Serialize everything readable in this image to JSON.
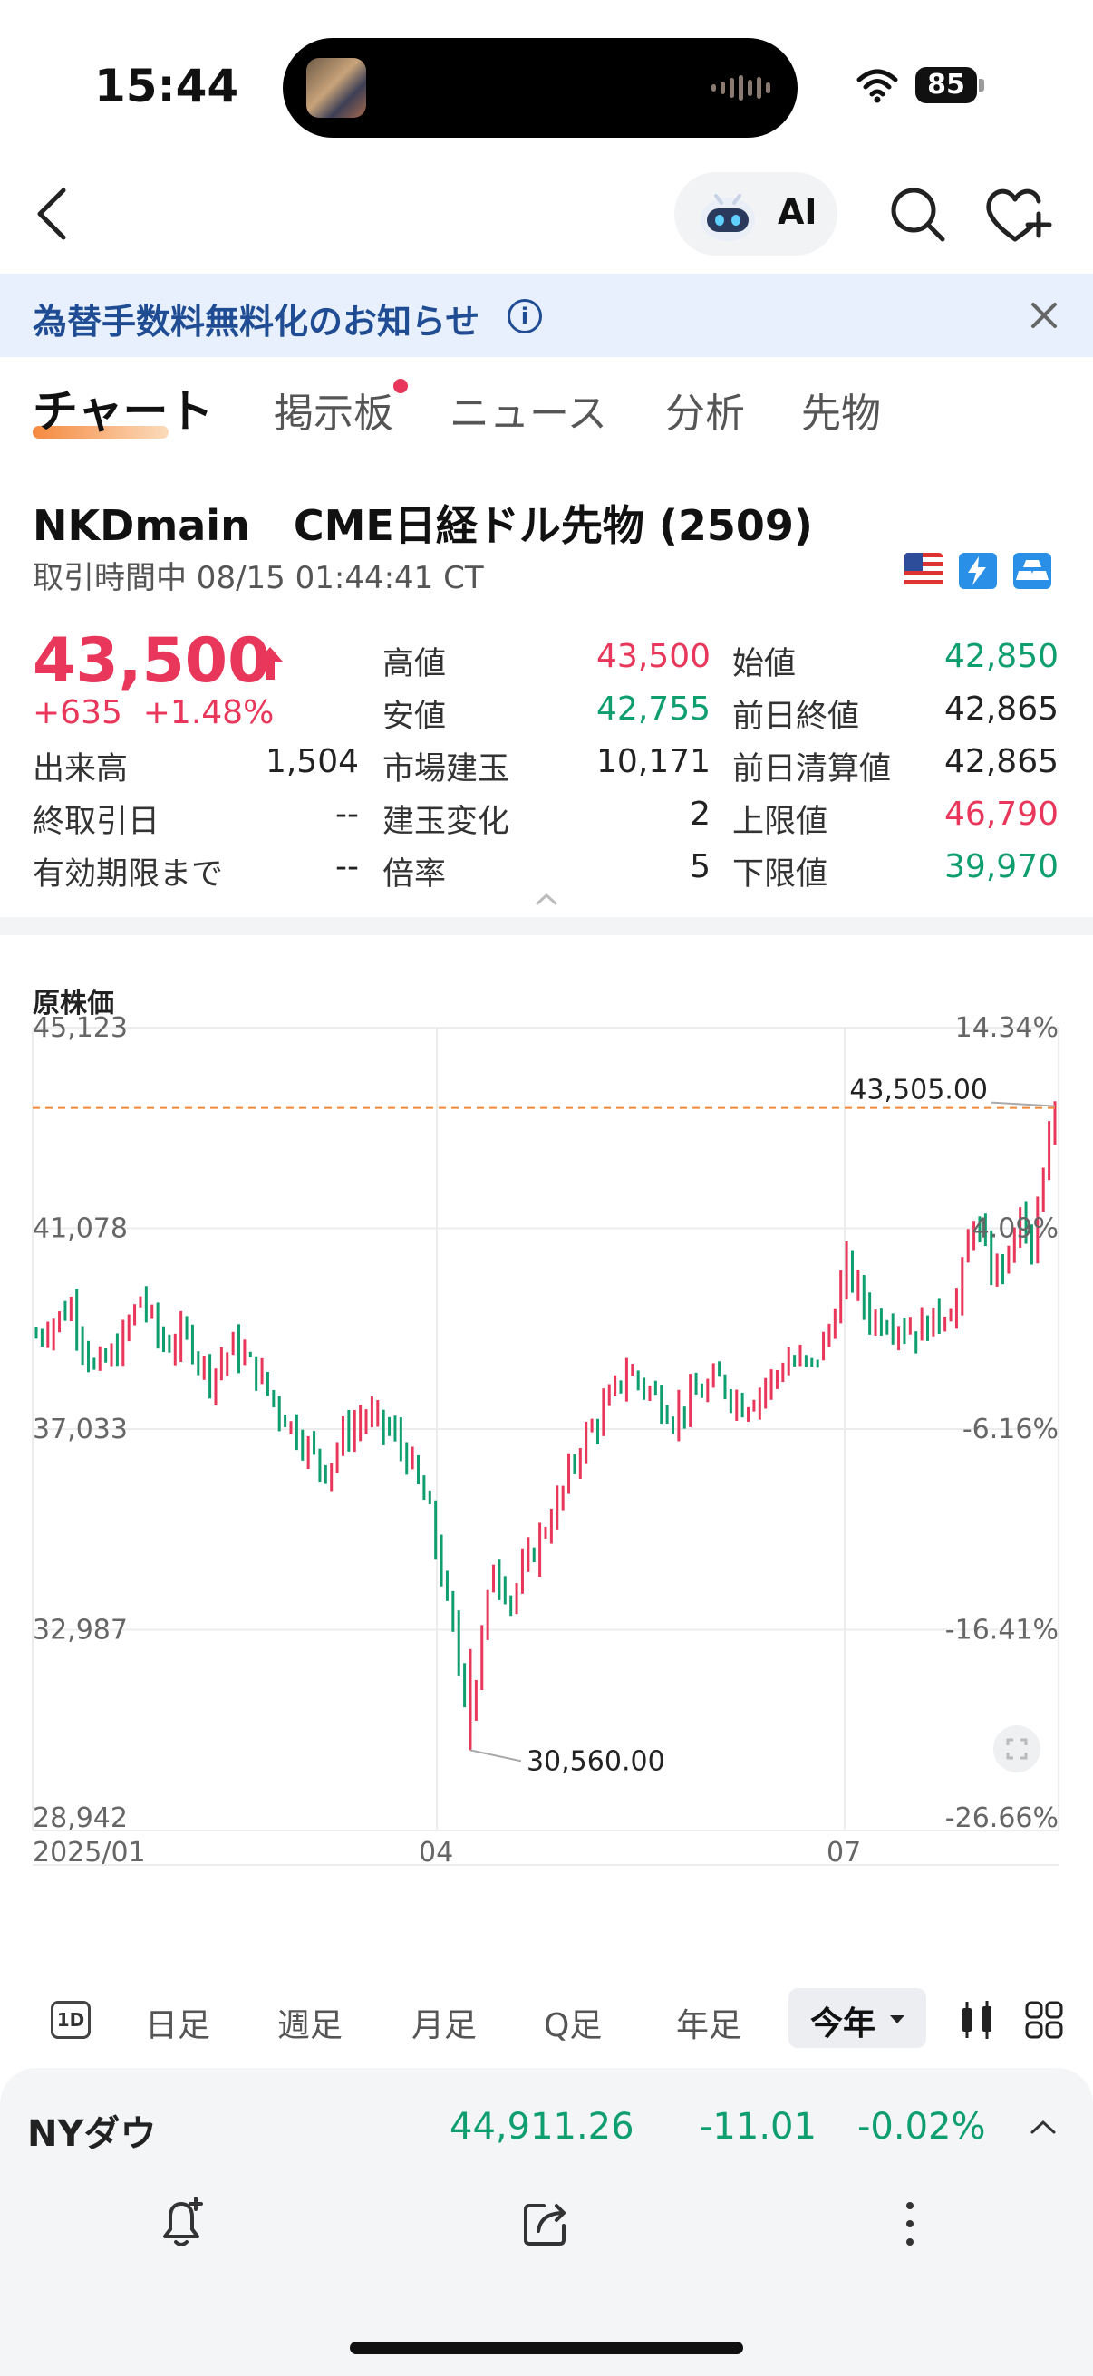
{
  "status_bar": {
    "time": "15:44",
    "battery": "85"
  },
  "header": {
    "ai_label": "AI"
  },
  "banner": {
    "text": "為替手数料無料化のお知らせ"
  },
  "tabs": [
    {
      "label": "チャート",
      "active": true
    },
    {
      "label": "掲示板",
      "badge": true
    },
    {
      "label": "ニュース"
    },
    {
      "label": "分析"
    },
    {
      "label": "先物"
    }
  ],
  "symbol": {
    "title": "NKDmain   CME日経ドル先物 (2509)",
    "status": "取引時間中 08/15 01:44:41 CT"
  },
  "quote": {
    "price": "43,500",
    "change": "+635  +1.48%"
  },
  "stats": {
    "volume_label": "出来高",
    "volume": "1,504",
    "last_trade_label": "終取引日",
    "last_trade": "--",
    "expiry_label": "有効期限まで",
    "expiry": "--",
    "high_label": "高値",
    "high": "43,500",
    "low_label": "安値",
    "low": "42,755",
    "oi_label": "市場建玉",
    "oi": "10,171",
    "oi_change_label": "建玉変化",
    "oi_change": "2",
    "multiplier_label": "倍率",
    "multiplier": "5",
    "open_label": "始値",
    "open": "42,850",
    "prev_close_label": "前日終値",
    "prev_close": "42,865",
    "prev_settle_label": "前日清算値",
    "prev_settle": "42,865",
    "upper_limit_label": "上限値",
    "upper_limit": "46,790",
    "lower_limit_label": "下限値",
    "lower_limit": "39,970"
  },
  "chart": {
    "label": "原株価",
    "high_note": "43,505.00",
    "low_note": "30,560.00"
  },
  "chart_data": {
    "type": "candlestick",
    "title": "",
    "y_ticks": [
      "45,123",
      "41,078",
      "37,033",
      "32,987",
      "28,942"
    ],
    "pct_ticks": [
      "14.34%",
      "4.09%",
      "-6.16%",
      "-16.41%",
      "-26.66%"
    ],
    "x_ticks": [
      "2025/01",
      "04",
      "07"
    ],
    "ylim": [
      28942,
      45123
    ],
    "last_price": 43505,
    "high_point": 43505,
    "low_point": 30560,
    "up_color": "#e8375a",
    "down_color": "#0f9e6e"
  },
  "periods": {
    "d1": "1D",
    "items": [
      "日足",
      "週足",
      "月足",
      "Q足",
      "年足"
    ],
    "active": "今年"
  },
  "index": {
    "name": "NYダウ",
    "value": "44,911.26",
    "change": "-11.01",
    "pct": "-0.02%"
  }
}
